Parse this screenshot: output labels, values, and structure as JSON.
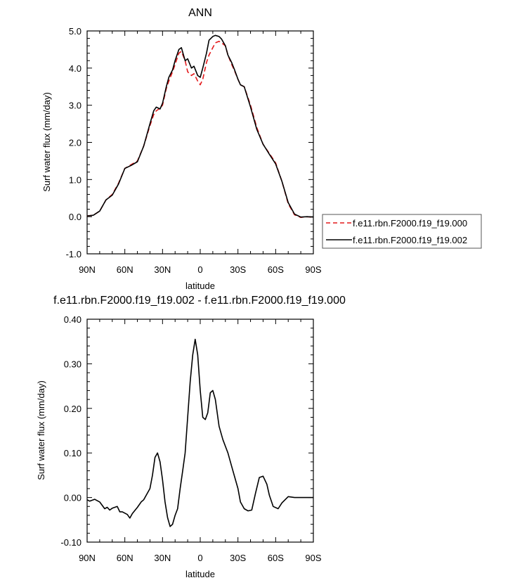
{
  "chart_data": [
    {
      "type": "line",
      "title": "ANN",
      "xlabel": "latitude",
      "ylabel": "Surf water flux (mm/day)",
      "xlim": [
        90,
        -90
      ],
      "ylim": [
        -1.0,
        5.0
      ],
      "x_ticks": [
        90,
        60,
        30,
        0,
        -30,
        -60,
        -90
      ],
      "x_tick_labels": [
        "90N",
        "60N",
        "30N",
        "0",
        "30S",
        "60S",
        "90S"
      ],
      "y_ticks": [
        -1.0,
        0.0,
        1.0,
        2.0,
        3.0,
        4.0,
        5.0
      ],
      "y_tick_labels": [
        "-1.0",
        "0.0",
        "1.0",
        "2.0",
        "3.0",
        "4.0",
        "5.0"
      ],
      "grid": false,
      "legend_position": "right",
      "series": [
        {
          "name": "f.e11.rbn.F2000.f19_f19.000",
          "color": "#e41a1c",
          "dash": "dashed",
          "x": [
            90,
            85,
            80,
            75,
            70,
            65,
            60,
            55,
            50,
            45,
            40,
            37,
            35,
            32,
            30,
            27,
            25,
            22,
            20,
            17,
            15,
            12,
            10,
            7,
            5,
            2,
            0,
            -2,
            -5,
            -7,
            -10,
            -12,
            -15,
            -17,
            -20,
            -22,
            -25,
            -27,
            -30,
            -32,
            -35,
            -40,
            -45,
            -50,
            -55,
            -60,
            -65,
            -70,
            -75,
            -80,
            -85,
            -90
          ],
          "y": [
            0.02,
            0.04,
            0.15,
            0.45,
            0.6,
            0.9,
            1.3,
            1.4,
            1.5,
            1.9,
            2.45,
            2.75,
            2.85,
            2.92,
            3.0,
            3.45,
            3.65,
            3.9,
            4.1,
            4.4,
            4.45,
            4.2,
            3.9,
            3.8,
            3.85,
            3.65,
            3.55,
            3.7,
            4.15,
            4.35,
            4.55,
            4.68,
            4.72,
            4.68,
            4.6,
            4.35,
            4.1,
            3.95,
            3.7,
            3.55,
            3.5,
            3.0,
            2.4,
            1.95,
            1.7,
            1.45,
            0.95,
            0.35,
            0.05,
            -0.02,
            0.0,
            -0.02
          ]
        },
        {
          "name": "f.e11.rbn.F2000.f19_f19.002",
          "color": "#000000",
          "dash": "solid",
          "x": [
            90,
            85,
            80,
            75,
            70,
            65,
            60,
            55,
            50,
            45,
            40,
            37,
            35,
            32,
            30,
            27,
            25,
            22,
            20,
            17,
            15,
            12,
            10,
            7,
            5,
            2,
            0,
            -2,
            -5,
            -7,
            -10,
            -12,
            -15,
            -17,
            -20,
            -22,
            -25,
            -27,
            -30,
            -32,
            -35,
            -40,
            -45,
            -50,
            -55,
            -60,
            -65,
            -70,
            -75,
            -80,
            -85,
            -90
          ],
          "y": [
            0.02,
            0.04,
            0.15,
            0.45,
            0.58,
            0.88,
            1.3,
            1.38,
            1.48,
            1.9,
            2.5,
            2.85,
            2.95,
            2.9,
            3.05,
            3.5,
            3.75,
            3.95,
            4.2,
            4.5,
            4.55,
            4.2,
            4.25,
            4.0,
            4.05,
            3.8,
            3.75,
            4.0,
            4.4,
            4.75,
            4.85,
            4.88,
            4.85,
            4.78,
            4.6,
            4.35,
            4.15,
            3.98,
            3.7,
            3.55,
            3.5,
            2.95,
            2.35,
            1.95,
            1.68,
            1.42,
            0.95,
            0.38,
            0.07,
            -0.01,
            0.0,
            -0.01
          ]
        }
      ]
    },
    {
      "type": "line",
      "title": "f.e11.rbn.F2000.f19_f19.002 - f.e11.rbn.F2000.f19_f19.000",
      "xlabel": "latitude",
      "ylabel": "Surf water flux (mm/day)",
      "xlim": [
        90,
        -90
      ],
      "ylim": [
        -0.1,
        0.4
      ],
      "x_ticks": [
        90,
        60,
        30,
        0,
        -30,
        -60,
        -90
      ],
      "x_tick_labels": [
        "90N",
        "60N",
        "30N",
        "0",
        "30S",
        "60S",
        "90S"
      ],
      "y_ticks": [
        -0.1,
        0.0,
        0.1,
        0.2,
        0.3,
        0.4
      ],
      "y_tick_labels": [
        "-0.10",
        "0.00",
        "0.10",
        "0.20",
        "0.30",
        "0.40"
      ],
      "grid": false,
      "series": [
        {
          "color": "#000000",
          "dash": "solid",
          "x": [
            90,
            88,
            84,
            80,
            76,
            74,
            72,
            70,
            66,
            64,
            62,
            58,
            56,
            54,
            50,
            47,
            45,
            43,
            40,
            38,
            36,
            34,
            32,
            30,
            28,
            26,
            24,
            22,
            20,
            18,
            16,
            14,
            12,
            10,
            8,
            6,
            4,
            2,
            0,
            -2,
            -4,
            -6,
            -8,
            -10,
            -12,
            -15,
            -18,
            -22,
            -25,
            -27,
            -30,
            -32,
            -35,
            -38,
            -41,
            -44,
            -47,
            -50,
            -53,
            -55,
            -58,
            -62,
            -65,
            -70,
            -75,
            -80,
            -85,
            -90
          ],
          "y": [
            -0.005,
            -0.008,
            -0.004,
            -0.01,
            -0.025,
            -0.022,
            -0.028,
            -0.024,
            -0.02,
            -0.032,
            -0.032,
            -0.038,
            -0.046,
            -0.036,
            -0.022,
            -0.01,
            -0.005,
            0.005,
            0.02,
            0.05,
            0.09,
            0.1,
            0.08,
            0.04,
            -0.01,
            -0.045,
            -0.065,
            -0.06,
            -0.04,
            -0.025,
            0.02,
            0.06,
            0.1,
            0.18,
            0.26,
            0.32,
            0.355,
            0.32,
            0.24,
            0.18,
            0.175,
            0.19,
            0.235,
            0.24,
            0.22,
            0.16,
            0.13,
            0.1,
            0.07,
            0.05,
            0.02,
            -0.01,
            -0.025,
            -0.03,
            -0.028,
            0.01,
            0.045,
            0.048,
            0.03,
            0.005,
            -0.02,
            -0.025,
            -0.012,
            0.002,
            0.0,
            0.0,
            0.0,
            0.0
          ]
        }
      ]
    }
  ]
}
